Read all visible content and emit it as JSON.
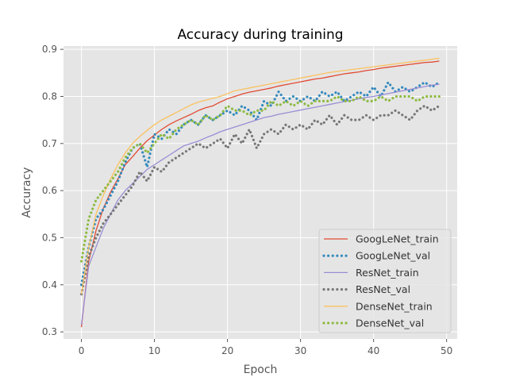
{
  "chart_data": {
    "type": "line",
    "title": "Accuracy during training",
    "xlabel": "Epoch",
    "ylabel": "Accuracy",
    "xlim": [
      -2.45,
      51.45
    ],
    "ylim": [
      0.285,
      0.907
    ],
    "xticks": [
      0,
      10,
      20,
      30,
      40,
      50
    ],
    "yticks": [
      0.3,
      0.4,
      0.5,
      0.6,
      0.7,
      0.8,
      0.9
    ],
    "grid": true,
    "legend_position": "lower-right",
    "x": [
      0,
      1,
      2,
      3,
      4,
      5,
      6,
      7,
      8,
      9,
      10,
      11,
      12,
      13,
      14,
      15,
      16,
      17,
      18,
      19,
      20,
      21,
      22,
      23,
      24,
      25,
      26,
      27,
      28,
      29,
      30,
      31,
      32,
      33,
      34,
      35,
      36,
      37,
      38,
      39,
      40,
      41,
      42,
      43,
      44,
      45,
      46,
      47,
      48,
      49
    ],
    "series": [
      {
        "name": "GoogLeNet_train",
        "color": "#E24A33",
        "style": "solid",
        "values": [
          0.31,
          0.45,
          0.515,
          0.562,
          0.597,
          0.625,
          0.655,
          0.672,
          0.69,
          0.706,
          0.718,
          0.73,
          0.74,
          0.748,
          0.755,
          0.762,
          0.77,
          0.776,
          0.78,
          0.788,
          0.795,
          0.8,
          0.805,
          0.809,
          0.812,
          0.815,
          0.818,
          0.822,
          0.825,
          0.828,
          0.831,
          0.834,
          0.837,
          0.839,
          0.842,
          0.845,
          0.848,
          0.85,
          0.852,
          0.855,
          0.857,
          0.86,
          0.862,
          0.864,
          0.866,
          0.868,
          0.87,
          0.872,
          0.873,
          0.875
        ]
      },
      {
        "name": "GoogLeNet_val",
        "color": "#348ABD",
        "style": "dotted",
        "values": [
          0.4,
          0.48,
          0.54,
          0.56,
          0.59,
          0.62,
          0.66,
          0.69,
          0.7,
          0.65,
          0.72,
          0.71,
          0.73,
          0.72,
          0.74,
          0.75,
          0.74,
          0.76,
          0.75,
          0.76,
          0.77,
          0.76,
          0.78,
          0.77,
          0.75,
          0.79,
          0.78,
          0.81,
          0.79,
          0.8,
          0.79,
          0.8,
          0.79,
          0.81,
          0.8,
          0.81,
          0.79,
          0.8,
          0.81,
          0.8,
          0.82,
          0.8,
          0.83,
          0.81,
          0.82,
          0.81,
          0.82,
          0.83,
          0.82,
          0.83
        ]
      },
      {
        "name": "ResNet_train",
        "color": "#988ED5",
        "style": "solid",
        "values": [
          0.315,
          0.44,
          0.48,
          0.52,
          0.55,
          0.58,
          0.6,
          0.615,
          0.63,
          0.645,
          0.655,
          0.665,
          0.675,
          0.685,
          0.695,
          0.7,
          0.705,
          0.712,
          0.718,
          0.725,
          0.73,
          0.735,
          0.74,
          0.745,
          0.75,
          0.755,
          0.758,
          0.762,
          0.765,
          0.768,
          0.771,
          0.774,
          0.777,
          0.78,
          0.783,
          0.786,
          0.789,
          0.792,
          0.795,
          0.798,
          0.8,
          0.803,
          0.806,
          0.809,
          0.812,
          0.815,
          0.818,
          0.821,
          0.824,
          0.826
        ]
      },
      {
        "name": "ResNet_val",
        "color": "#777777",
        "style": "dotted",
        "values": [
          0.38,
          0.46,
          0.5,
          0.53,
          0.55,
          0.57,
          0.59,
          0.61,
          0.64,
          0.62,
          0.65,
          0.64,
          0.66,
          0.67,
          0.68,
          0.69,
          0.7,
          0.69,
          0.7,
          0.71,
          0.69,
          0.72,
          0.7,
          0.73,
          0.69,
          0.72,
          0.73,
          0.72,
          0.74,
          0.73,
          0.74,
          0.73,
          0.75,
          0.74,
          0.76,
          0.74,
          0.76,
          0.75,
          0.75,
          0.76,
          0.75,
          0.76,
          0.76,
          0.77,
          0.76,
          0.75,
          0.77,
          0.78,
          0.77,
          0.78
        ]
      },
      {
        "name": "DenseNet_train",
        "color": "#FBC15E",
        "style": "solid",
        "values": [
          0.38,
          0.48,
          0.55,
          0.59,
          0.625,
          0.655,
          0.68,
          0.7,
          0.715,
          0.728,
          0.74,
          0.75,
          0.758,
          0.766,
          0.774,
          0.782,
          0.788,
          0.792,
          0.796,
          0.8,
          0.806,
          0.812,
          0.815,
          0.818,
          0.821,
          0.824,
          0.827,
          0.83,
          0.833,
          0.836,
          0.839,
          0.842,
          0.845,
          0.848,
          0.851,
          0.853,
          0.855,
          0.857,
          0.859,
          0.861,
          0.863,
          0.865,
          0.867,
          0.869,
          0.871,
          0.873,
          0.875,
          0.877,
          0.879,
          0.881
        ]
      },
      {
        "name": "DenseNet_val",
        "color": "#8EBA42",
        "style": "dotted",
        "values": [
          0.45,
          0.54,
          0.58,
          0.6,
          0.62,
          0.64,
          0.67,
          0.69,
          0.7,
          0.68,
          0.7,
          0.72,
          0.71,
          0.73,
          0.74,
          0.75,
          0.74,
          0.76,
          0.75,
          0.76,
          0.78,
          0.77,
          0.77,
          0.76,
          0.77,
          0.77,
          0.79,
          0.78,
          0.79,
          0.78,
          0.79,
          0.78,
          0.79,
          0.79,
          0.79,
          0.8,
          0.79,
          0.79,
          0.8,
          0.79,
          0.79,
          0.8,
          0.79,
          0.8,
          0.8,
          0.8,
          0.79,
          0.8,
          0.8,
          0.8
        ]
      }
    ]
  }
}
